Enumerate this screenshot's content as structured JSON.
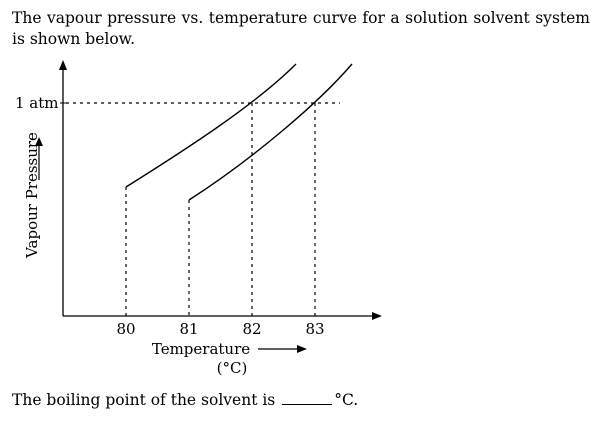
{
  "question": {
    "text": "The vapour pressure vs. temperature curve for a solution solvent system is shown below."
  },
  "chart_data": {
    "type": "line",
    "ylabel": "Vapour Pressure",
    "xlabel": "Temperature",
    "xlabel_unit": "(°C)",
    "y_reference_label": "1 atm",
    "x_ticks": [
      "80",
      "81",
      "82",
      "83"
    ],
    "series": [
      {
        "points": [
          [
            80,
            0.42
          ],
          [
            80.5,
            0.62
          ],
          [
            81,
            0.82
          ],
          [
            81.5,
            1.08
          ],
          [
            82,
            1.45
          ]
        ]
      },
      {
        "points": [
          [
            81,
            0.3
          ],
          [
            81.5,
            0.48
          ],
          [
            82,
            0.68
          ],
          [
            82.5,
            0.96
          ],
          [
            83,
            1.48
          ]
        ]
      }
    ]
  },
  "prompt": {
    "before": "The boiling point of the solvent is",
    "after": "°C."
  }
}
